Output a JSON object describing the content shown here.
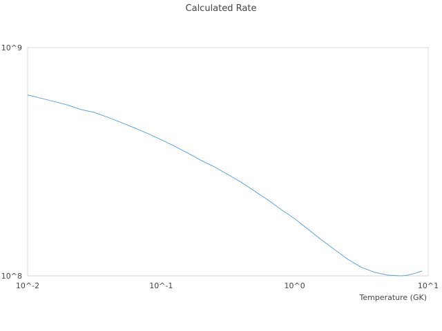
{
  "chart_data": {
    "type": "line",
    "title": "Calculated Rate",
    "xlabel": "Temperature (GK)",
    "ylabel": "",
    "x_scale": "log",
    "y_scale": "log",
    "xlim": [
      0.01,
      10
    ],
    "ylim": [
      100000000,
      1000000000
    ],
    "x_ticks": [
      {
        "value": 0.01,
        "label": "10^-2"
      },
      {
        "value": 0.1,
        "label": "10^-1"
      },
      {
        "value": 1,
        "label": "10^0"
      },
      {
        "value": 10,
        "label": "10^1"
      }
    ],
    "y_ticks": [
      {
        "value": 100000000,
        "label": "10^8"
      },
      {
        "value": 1000000000,
        "label": "10^9"
      }
    ],
    "grid": false,
    "legend": "none",
    "colors": {
      "line": "#5ba3e6",
      "frame": "#d9d9d9",
      "text": "#444444"
    },
    "series": [
      {
        "x": [
          0.01,
          0.0126,
          0.0158,
          0.02,
          0.0251,
          0.0316,
          0.0398,
          0.0501,
          0.0631,
          0.0794,
          0.1,
          0.126,
          0.158,
          0.2,
          0.251,
          0.316,
          0.398,
          0.501,
          0.631,
          0.794,
          1.0,
          1.26,
          1.58,
          2.0,
          2.51,
          3.16,
          3.98,
          5.01,
          6.31,
          7.0,
          7.94,
          9.0
        ],
        "y": [
          620000000,
          600000000,
          580000000,
          560000000,
          535000000,
          520000000,
          495000000,
          470000000,
          445000000,
          420000000,
          395000000,
          370000000,
          345000000,
          320000000,
          300000000,
          278000000,
          257000000,
          235000000,
          215000000,
          195000000,
          178000000,
          160000000,
          144000000,
          130000000,
          118000000,
          109000000,
          103500000,
          100700000,
          100000000,
          100600000,
          102500000,
          105000000
        ]
      }
    ]
  }
}
